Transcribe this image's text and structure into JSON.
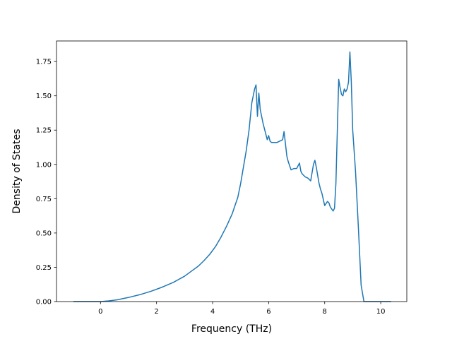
{
  "chart_data": {
    "type": "line",
    "title": "",
    "xlabel": "Frequency (THz)",
    "ylabel": "Density of States",
    "xlim": [
      -1.57,
      10.93
    ],
    "ylim": [
      0,
      1.9
    ],
    "xticks": [
      0,
      2,
      4,
      6,
      8,
      10
    ],
    "xtick_labels": [
      "0",
      "2",
      "4",
      "6",
      "8",
      "10"
    ],
    "yticks": [
      0,
      0.25,
      0.5,
      0.75,
      1.0,
      1.25,
      1.5,
      1.75
    ],
    "ytick_labels": [
      "0.00",
      "0.25",
      "0.50",
      "0.75",
      "1.00",
      "1.25",
      "1.50",
      "1.75"
    ],
    "grid": false,
    "line_color": "#1f77b4",
    "series": [
      {
        "x": [
          -0.95,
          0,
          0.3,
          0.6,
          1.0,
          1.4,
          1.8,
          2.2,
          2.6,
          3.0,
          3.3,
          3.5,
          3.7,
          3.9,
          4.1,
          4.3,
          4.5,
          4.7,
          4.8,
          4.9,
          5.0,
          5.1,
          5.2,
          5.3,
          5.4,
          5.5,
          5.55,
          5.6,
          5.65,
          5.7,
          5.8,
          5.9,
          5.95,
          6.0,
          6.05,
          6.1,
          6.3,
          6.5,
          6.55,
          6.6,
          6.65,
          6.7,
          6.8,
          6.9,
          7.0,
          7.1,
          7.15,
          7.2,
          7.3,
          7.4,
          7.5,
          7.6,
          7.65,
          7.7,
          7.8,
          7.85,
          7.9,
          8.0,
          8.1,
          8.15,
          8.2,
          8.3,
          8.35,
          8.4,
          8.5,
          8.55,
          8.6,
          8.65,
          8.7,
          8.75,
          8.8,
          8.85,
          8.9,
          8.95,
          9.0,
          9.1,
          9.2,
          9.3,
          9.4,
          9.45,
          9.6,
          9.8,
          10.0,
          10.2,
          10.35
        ],
        "y": [
          0,
          0,
          0.005,
          0.013,
          0.03,
          0.05,
          0.075,
          0.105,
          0.14,
          0.185,
          0.23,
          0.26,
          0.3,
          0.345,
          0.4,
          0.47,
          0.55,
          0.64,
          0.7,
          0.76,
          0.86,
          0.98,
          1.1,
          1.25,
          1.45,
          1.55,
          1.58,
          1.35,
          1.52,
          1.4,
          1.3,
          1.22,
          1.18,
          1.21,
          1.17,
          1.16,
          1.16,
          1.18,
          1.24,
          1.15,
          1.06,
          1.02,
          0.96,
          0.97,
          0.97,
          1.01,
          0.95,
          0.93,
          0.91,
          0.9,
          0.88,
          1.0,
          1.03,
          0.98,
          0.86,
          0.82,
          0.79,
          0.7,
          0.73,
          0.72,
          0.69,
          0.66,
          0.68,
          0.86,
          1.62,
          1.56,
          1.51,
          1.5,
          1.55,
          1.53,
          1.55,
          1.6,
          1.82,
          1.6,
          1.25,
          0.95,
          0.55,
          0.12,
          0,
          0,
          0,
          0,
          0,
          0,
          0
        ]
      }
    ]
  }
}
